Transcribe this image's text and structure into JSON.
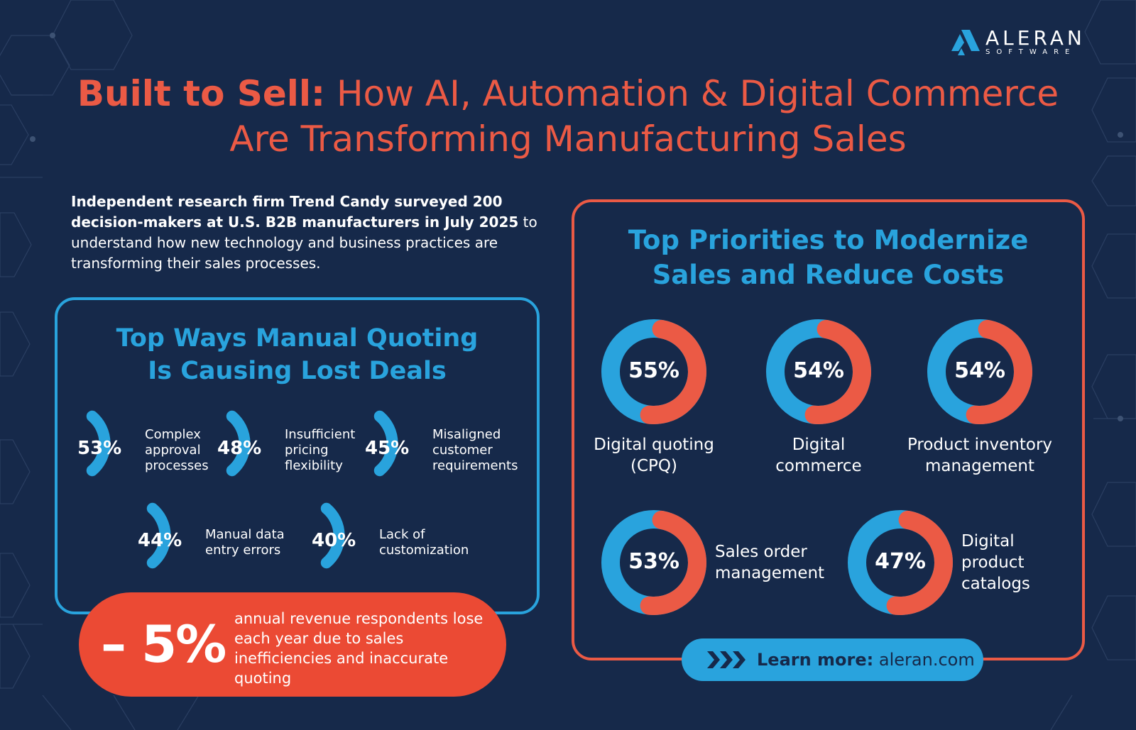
{
  "brand": {
    "name": "ALERAN",
    "sub": "SOFTWARE",
    "colors": {
      "background": "#16294a",
      "accent_red": "#eb5a45",
      "accent_blue": "#29a3dd",
      "pill_red": "#eb4a34"
    }
  },
  "header": {
    "title_bold": "Built to Sell:",
    "title_rest_line1": "How AI, Automation & Digital Commerce",
    "title_line2": "Are Transforming Manufacturing Sales"
  },
  "intro": {
    "bold": "Independent research firm Trend Candy surveyed 200 decision-makers at U.S. B2B manufacturers in July 2025",
    "rest": " to understand how new technology and business practices are transforming their sales processes."
  },
  "lost_deals": {
    "title_line1": "Top Ways Manual Quoting",
    "title_line2": "Is Causing Lost Deals",
    "items": [
      {
        "pct": "53%",
        "value": 53,
        "label_lines": [
          "Complex",
          "approval",
          "processes"
        ]
      },
      {
        "pct": "48%",
        "value": 48,
        "label_lines": [
          "Insufficient",
          "pricing",
          "flexibility"
        ]
      },
      {
        "pct": "45%",
        "value": 45,
        "label_lines": [
          "Misaligned",
          "customer",
          "requirements"
        ]
      },
      {
        "pct": "44%",
        "value": 44,
        "label_lines": [
          "Manual data",
          "entry errors"
        ]
      },
      {
        "pct": "40%",
        "value": 40,
        "label_lines": [
          "Lack of",
          "customization"
        ]
      }
    ]
  },
  "revenue_stat": {
    "value": "– 5%",
    "text": "annual revenue respondents lose each year due to sales inefficiencies and inaccurate quoting"
  },
  "priorities": {
    "title_line1": "Top Priorities to Modernize",
    "title_line2": "Sales and Reduce Costs",
    "items": [
      {
        "pct": "55%",
        "value": 55,
        "label_lines": [
          "Digital quoting",
          "(CPQ)"
        ]
      },
      {
        "pct": "54%",
        "value": 54,
        "label_lines": [
          "Digital",
          "commerce"
        ]
      },
      {
        "pct": "54%",
        "value": 54,
        "label_lines": [
          "Product inventory",
          "management"
        ]
      },
      {
        "pct": "53%",
        "value": 53,
        "label_lines": [
          "Sales order",
          "management"
        ]
      },
      {
        "pct": "47%",
        "value": 47,
        "label_lines": [
          "Digital",
          "product",
          "catalogs"
        ]
      }
    ]
  },
  "cta": {
    "bold": "Learn more:",
    "link": "aleran.com"
  }
}
